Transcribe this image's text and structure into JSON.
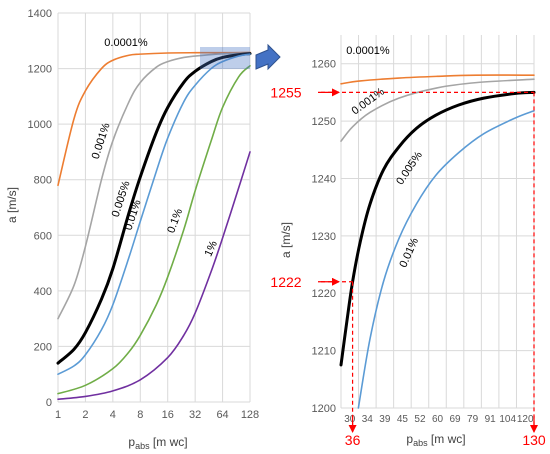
{
  "chart_data": [
    {
      "type": "line",
      "xscale": "log2",
      "xlim": [
        1,
        128
      ],
      "ylim": [
        0,
        1400
      ],
      "xticks": [
        "1",
        "2",
        "4",
        "8",
        "16",
        "32",
        "64",
        "128"
      ],
      "yticks": [
        "0",
        "200",
        "400",
        "600",
        "800",
        "1000",
        "1200",
        "1400"
      ],
      "grid": true,
      "xlabel": {
        "main": "p",
        "sub": "abs",
        "rest": " [m wc]"
      },
      "ylabel": "a [m/s]",
      "series": [
        {
          "name": "0.0001%",
          "color": "#ed7d31",
          "width": 1.6,
          "x": [
            1,
            1.5,
            2,
            3,
            4,
            6,
            8,
            16,
            32,
            64,
            128
          ],
          "y": [
            780,
            1020,
            1120,
            1200,
            1230,
            1248,
            1252,
            1256,
            1257,
            1257,
            1258
          ]
        },
        {
          "name": "0.001%",
          "color": "#a5a5a5",
          "width": 1.6,
          "x": [
            1,
            1.5,
            2,
            3,
            4,
            6,
            8,
            12,
            16,
            24,
            32,
            64,
            128
          ],
          "y": [
            300,
            420,
            560,
            800,
            940,
            1080,
            1150,
            1205,
            1225,
            1240,
            1245,
            1253,
            1256
          ]
        },
        {
          "name": "0.005%",
          "color": "#000000",
          "width": 3,
          "x": [
            1,
            1.5,
            2,
            3,
            4,
            6,
            8,
            12,
            16,
            24,
            32,
            48,
            64,
            96,
            128
          ],
          "y": [
            140,
            190,
            250,
            370,
            480,
            680,
            810,
            970,
            1060,
            1150,
            1190,
            1225,
            1240,
            1250,
            1254
          ]
        },
        {
          "name": "0.01%",
          "color": "#5b9bd5",
          "width": 1.6,
          "x": [
            1,
            1.5,
            2,
            3,
            4,
            6,
            8,
            12,
            16,
            24,
            32,
            48,
            64,
            96,
            128
          ],
          "y": [
            100,
            130,
            170,
            260,
            350,
            520,
            650,
            830,
            950,
            1080,
            1140,
            1200,
            1225,
            1245,
            1252
          ]
        },
        {
          "name": "0.1%",
          "color": "#70ad47",
          "width": 1.6,
          "x": [
            1,
            2,
            4,
            6,
            8,
            12,
            16,
            24,
            32,
            48,
            64,
            96,
            128
          ],
          "y": [
            30,
            60,
            120,
            180,
            240,
            350,
            450,
            620,
            760,
            940,
            1060,
            1170,
            1210
          ]
        },
        {
          "name": "1%",
          "color": "#7030a0",
          "width": 1.6,
          "x": [
            1,
            2,
            4,
            8,
            16,
            24,
            32,
            48,
            64,
            96,
            128
          ],
          "y": [
            10,
            20,
            40,
            80,
            160,
            240,
            320,
            470,
            590,
            770,
            900
          ]
        }
      ]
    },
    {
      "type": "line",
      "xlim": [
        30,
        130
      ],
      "ylim": [
        1200,
        1265
      ],
      "xticks": [
        "30",
        "34",
        "39",
        "45",
        "52",
        "60",
        "69",
        "79",
        "91",
        "104",
        "120"
      ],
      "yticks": [
        "1200",
        "1210",
        "1220",
        "1230",
        "1240",
        "1250",
        "1260"
      ],
      "grid": true,
      "xlabel": {
        "main": "p",
        "sub": "abs",
        "rest": " [m wc]"
      },
      "ylabel": "a [m/s]",
      "series": [
        {
          "name": "0.0001%",
          "color": "#ed7d31",
          "width": 1.6,
          "x": [
            30,
            40,
            60,
            80,
            100,
            130
          ],
          "y": [
            1256.5,
            1257.0,
            1257.5,
            1257.8,
            1258.0,
            1258.0
          ]
        },
        {
          "name": "0.001%",
          "color": "#a5a5a5",
          "width": 1.6,
          "x": [
            30,
            36,
            45,
            60,
            80,
            100,
            130
          ],
          "y": [
            1246.5,
            1249.0,
            1251.5,
            1254.0,
            1255.8,
            1256.7,
            1257.3
          ]
        },
        {
          "name": "0.005%",
          "color": "#000000",
          "width": 3,
          "x": [
            30,
            33,
            36,
            40,
            45,
            52,
            60,
            69,
            79,
            91,
            104,
            120,
            130
          ],
          "y": [
            1207.5,
            1215.0,
            1222.0,
            1229.0,
            1235.5,
            1241.5,
            1245.5,
            1248.7,
            1251.0,
            1252.8,
            1254.0,
            1254.8,
            1255.0
          ]
        },
        {
          "name": "0.01%",
          "color": "#5b9bd5",
          "width": 1.6,
          "x": [
            39,
            45,
            52,
            60,
            69,
            79,
            91,
            104,
            120,
            130
          ],
          "y": [
            1200,
            1212.0,
            1222.0,
            1229.5,
            1235.5,
            1240.5,
            1244.5,
            1247.8,
            1250.5,
            1251.8
          ]
        }
      ],
      "annotations": {
        "point_a": {
          "x": 36,
          "y": 1222,
          "x_label": "36",
          "y_label": "1222"
        },
        "point_b": {
          "x": 130,
          "y": 1255,
          "x_label": "130",
          "y_label": "1255"
        },
        "color": "#ff0000"
      }
    }
  ]
}
